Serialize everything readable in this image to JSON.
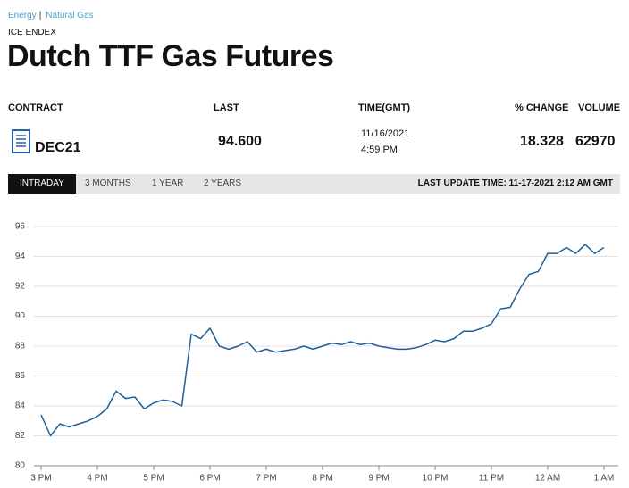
{
  "breadcrumb": {
    "items": [
      "Energy",
      "Natural Gas"
    ],
    "separator": "|"
  },
  "exchange": "ICE ENDEX",
  "title": "Dutch TTF Gas Futures",
  "quote_table": {
    "headers": [
      "CONTRACT",
      "LAST",
      "TIME(GMT)",
      "% CHANGE",
      "VOLUME"
    ],
    "row": {
      "contract": "DEC21",
      "last": "94.600",
      "date": "11/16/2021",
      "time": "4:59 PM",
      "change": "18.328",
      "volume": "62970"
    }
  },
  "tabs": [
    "INTRADAY",
    "3 MONTHS",
    "1 YEAR",
    "2 YEARS"
  ],
  "last_update": "LAST UPDATE TIME: 11-17-2021 2:12 AM GMT",
  "chart_data": {
    "type": "line",
    "categories": [
      "3 PM",
      null,
      null,
      null,
      null,
      null,
      "4 PM",
      null,
      null,
      null,
      null,
      null,
      "5 PM",
      null,
      null,
      null,
      null,
      null,
      "6 PM",
      null,
      null,
      null,
      null,
      null,
      "7 PM",
      null,
      null,
      null,
      null,
      null,
      "8 PM",
      null,
      null,
      null,
      null,
      null,
      "9 PM",
      null,
      null,
      null,
      null,
      null,
      "10 PM",
      null,
      null,
      null,
      null,
      null,
      "11 PM",
      null,
      null,
      null,
      null,
      null,
      "12 AM",
      null,
      null,
      null,
      null,
      null,
      "1 AM"
    ],
    "series": [
      {
        "color": "#1f5f99",
        "values": [
          83.4,
          82.0,
          82.8,
          82.6,
          82.8,
          83.0,
          83.3,
          83.8,
          85.0,
          84.5,
          84.6,
          83.8,
          84.2,
          84.4,
          84.3,
          84.0,
          88.8,
          88.5,
          89.2,
          88.0,
          87.8,
          88.0,
          88.3,
          87.6,
          87.8,
          87.6,
          87.7,
          87.8,
          88.0,
          87.8,
          88.0,
          88.2,
          88.1,
          88.3,
          88.1,
          88.2,
          88.0,
          87.9,
          87.8,
          87.8,
          87.9,
          88.1,
          88.4,
          88.3,
          88.5,
          89.0,
          89.0,
          89.2,
          89.5,
          90.5,
          90.6,
          91.8,
          92.8,
          93.0,
          94.2,
          94.2,
          94.6,
          94.2,
          94.8,
          94.2,
          94.6
        ]
      }
    ],
    "ylim": [
      80,
      96
    ],
    "yticks": [
      80,
      82,
      84,
      86,
      88,
      90,
      92,
      94,
      96
    ],
    "grid": true
  }
}
